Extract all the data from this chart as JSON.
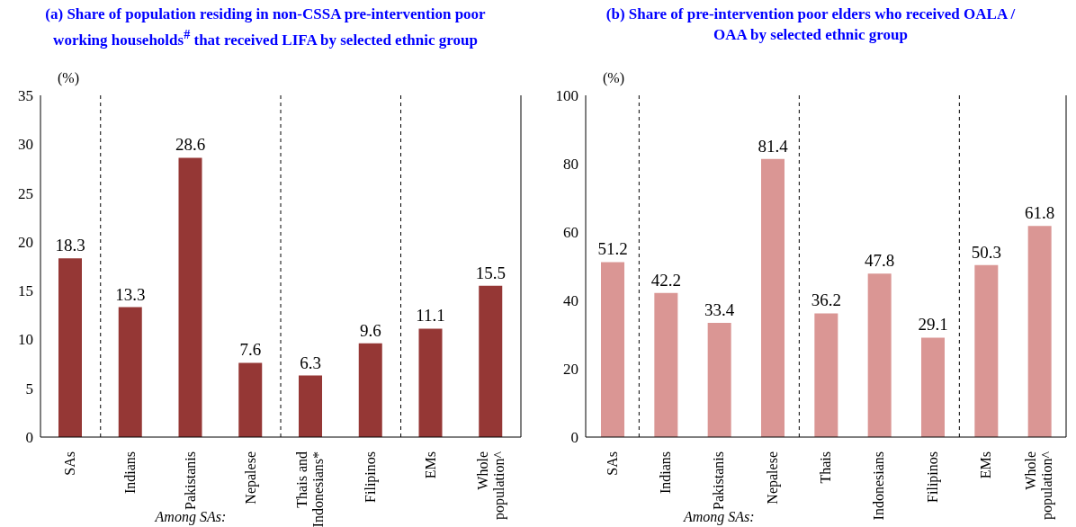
{
  "chart_data": [
    {
      "type": "bar",
      "title": "(a) Share of population residing in non-CSSA pre-intervention poor working households$^{#}$ that received LIFA by selected ethnic group",
      "ylabel": "(%)",
      "categories": [
        "SAs",
        "Indians",
        "Pakistanis",
        "Nepalese",
        "Thais and\nIndonesians*",
        "Filipinos",
        "EMs",
        "Whole\npopulation^"
      ],
      "values": [
        18.3,
        13.3,
        28.6,
        7.6,
        6.3,
        9.6,
        11.1,
        15.5
      ],
      "color": "#953735",
      "ylim": [
        0,
        35
      ],
      "yticks": [
        0,
        5,
        10,
        15,
        20,
        25,
        30,
        35
      ],
      "data_labels": true,
      "grid": false,
      "legend": false,
      "annotations": [
        "Among SAs:"
      ]
    },
    {
      "type": "bar",
      "title": "(b) Share of pre-intervention poor elders who received OALA / OAA by selected ethnic group",
      "ylabel": "(%)",
      "categories": [
        "SAs",
        "Indians",
        "Pakistanis",
        "Nepalese",
        "Thais",
        "Indonesians",
        "Filipinos",
        "EMs",
        "Whole\npopulation^"
      ],
      "values": [
        51.2,
        42.2,
        33.4,
        81.4,
        36.2,
        47.8,
        29.1,
        50.3,
        61.8
      ],
      "color": "#da9694",
      "ylim": [
        0,
        100
      ],
      "yticks": [
        0,
        20,
        40,
        60,
        80,
        100
      ],
      "data_labels": true,
      "grid": false,
      "legend": false,
      "annotations": [
        "Among SAs:"
      ]
    }
  ]
}
